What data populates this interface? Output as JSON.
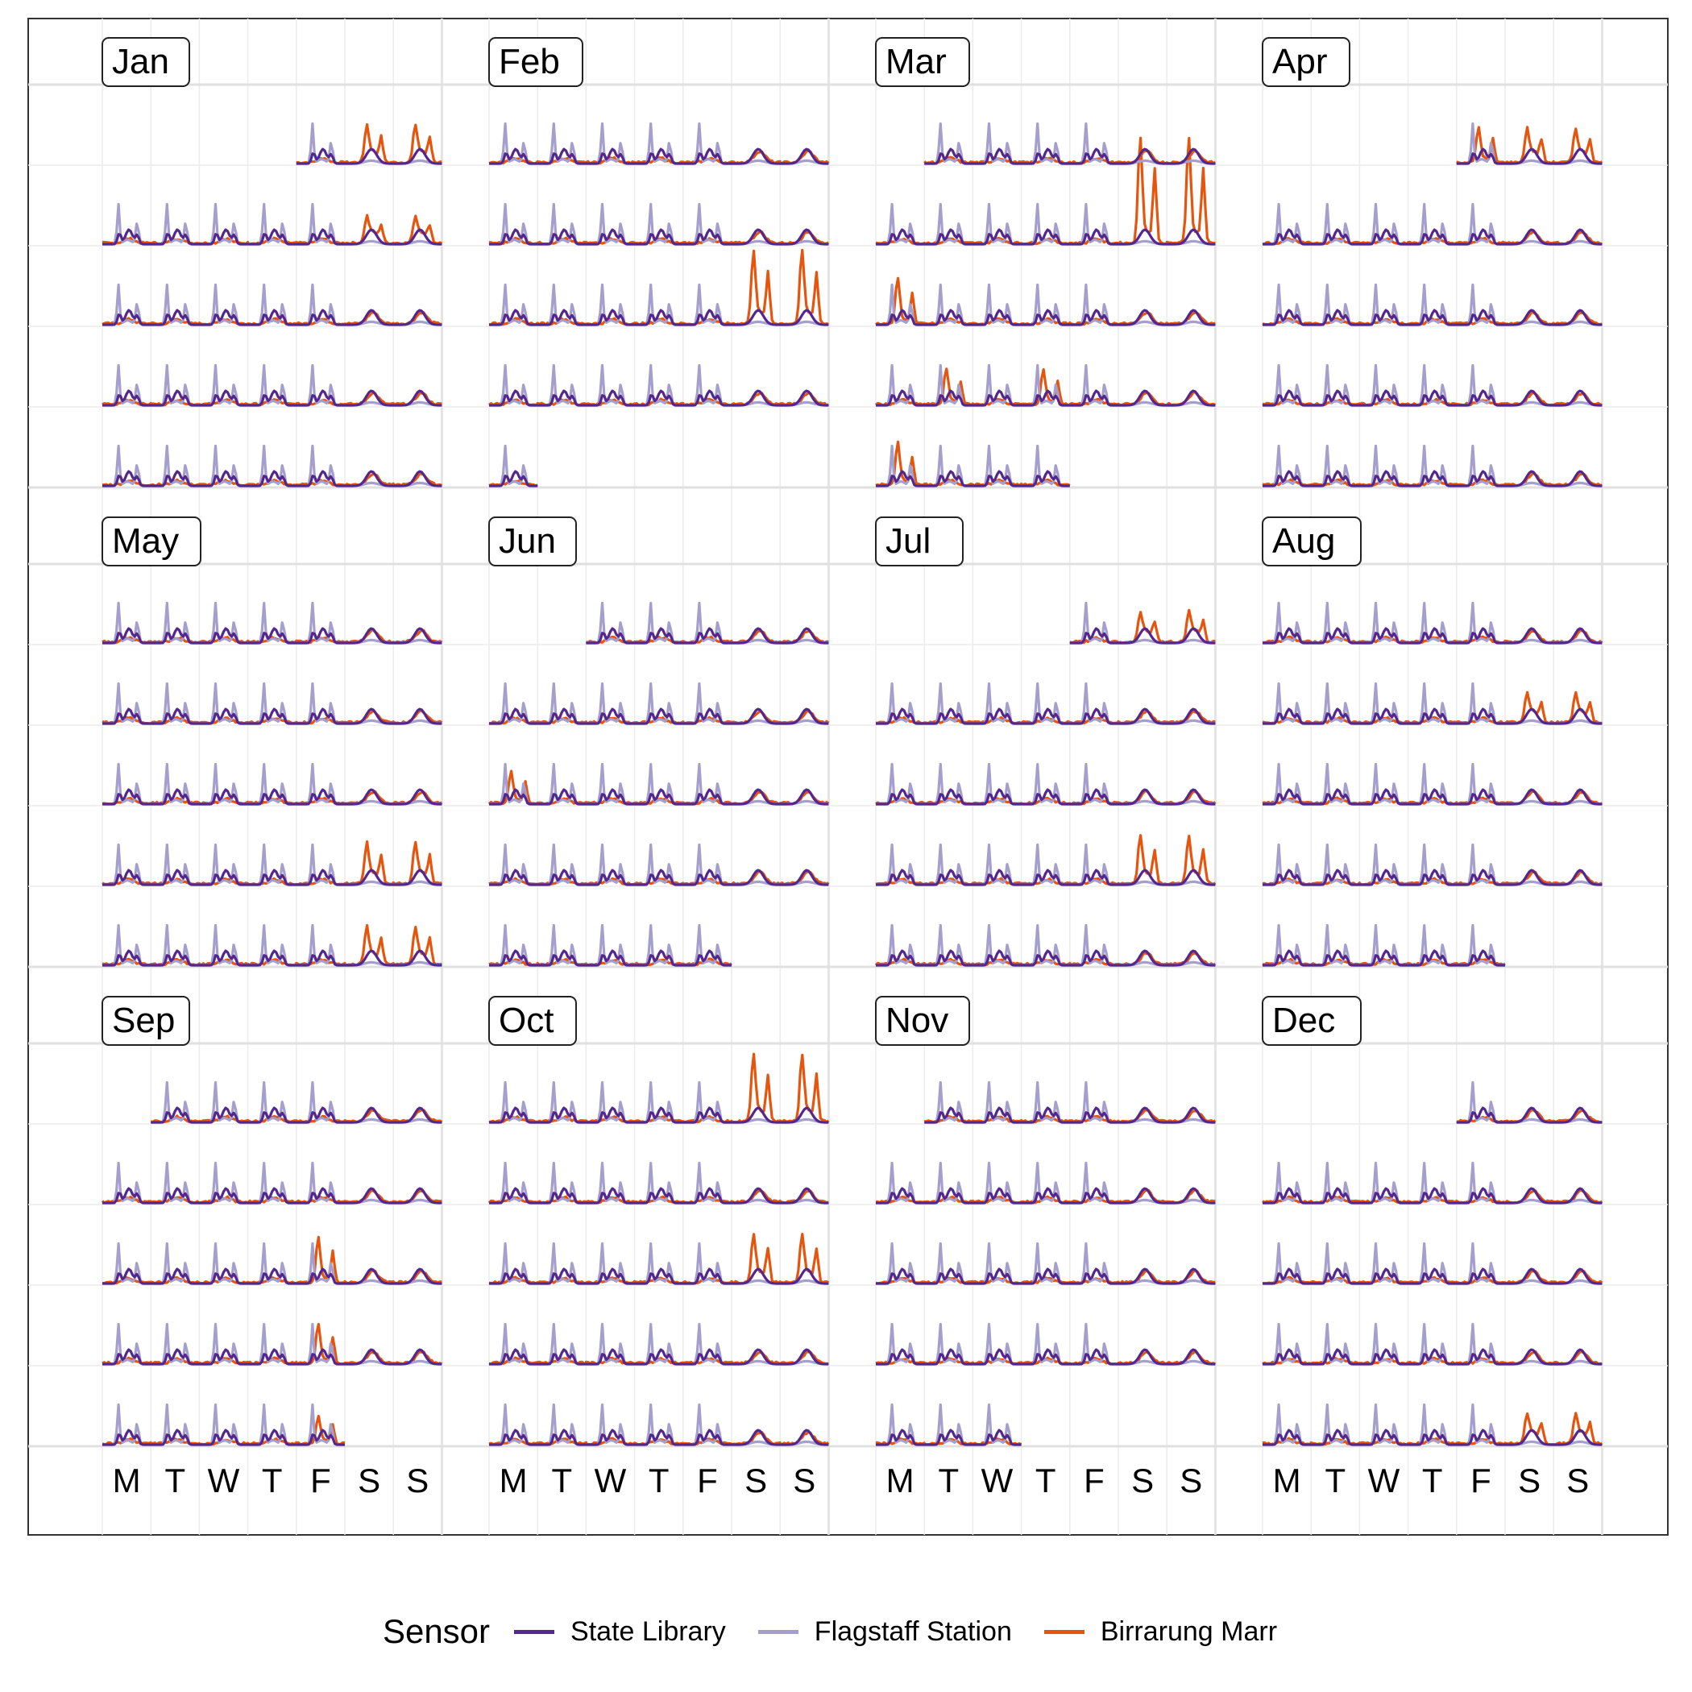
{
  "chart_data": {
    "type": "line",
    "subtype": "calendar",
    "title": "",
    "xlabel": "",
    "ylabel": "",
    "layout": "4 columns x 3 rows of months, each month a 7-day by 5-week calendar grid",
    "months": [
      "Jan",
      "Feb",
      "Mar",
      "Apr",
      "May",
      "Jun",
      "Jul",
      "Aug",
      "Sep",
      "Oct",
      "Nov",
      "Dec"
    ],
    "weekdays": [
      "M",
      "T",
      "W",
      "T",
      "F",
      "S",
      "S"
    ],
    "legend_title": "Sensor",
    "legend_position": "bottom",
    "grid": true,
    "series": [
      {
        "name": "State Library",
        "color": "#54278f",
        "pattern": "double-peak weekday commute, broad rounded weekend hump"
      },
      {
        "name": "Flagstaff Station",
        "color": "#a59fcd",
        "pattern": "tall morning spike plus evening spike on weekdays, flat weekends"
      },
      {
        "name": "Birrarung Marr",
        "color": "#e6550d",
        "pattern": "low flat baseline, occasional large event spikes (mostly weekends)"
      }
    ],
    "day_cells": [
      {
        "month": "Jan",
        "first_weekday": "F",
        "last_weekday": "S",
        "spikes": [
          {
            "week": 0,
            "weekday": "S",
            "level": 0.45
          },
          {
            "week": 1,
            "weekday": "S",
            "level": 0.3
          }
        ]
      },
      {
        "month": "Feb",
        "first_weekday": "M",
        "last_weekday": "M",
        "spikes": [
          {
            "week": 2,
            "weekday": "S",
            "level": 0.95
          }
        ]
      },
      {
        "month": "Mar",
        "first_weekday": "T",
        "last_weekday": "T",
        "spikes": [
          {
            "week": 1,
            "weekday": "S",
            "level": 0.65
          },
          {
            "week": 1,
            "weekday": "S",
            "level": 0.75
          },
          {
            "week": 2,
            "weekday": "M",
            "level": 0.6
          },
          {
            "week": 3,
            "weekday": "T",
            "level": 0.45
          },
          {
            "week": 4,
            "weekday": "M",
            "level": 0.55
          }
        ]
      },
      {
        "month": "Apr",
        "first_weekday": "F",
        "last_weekday": "S",
        "spikes": [
          {
            "week": 0,
            "weekday": "F",
            "level": 0.45
          },
          {
            "week": 0,
            "weekday": "S",
            "level": 0.4
          }
        ]
      },
      {
        "month": "May",
        "first_weekday": "M",
        "last_weekday": "S",
        "spikes": [
          {
            "week": 3,
            "weekday": "S",
            "level": 0.5
          },
          {
            "week": 4,
            "weekday": "S",
            "level": 0.45
          }
        ]
      },
      {
        "month": "Jun",
        "first_weekday": "W",
        "last_weekday": "F",
        "spikes": [
          {
            "week": 2,
            "weekday": "M",
            "level": 0.4
          }
        ]
      },
      {
        "month": "Jul",
        "first_weekday": "F",
        "last_weekday": "S",
        "spikes": [
          {
            "week": 3,
            "weekday": "S",
            "level": 0.6
          },
          {
            "week": 0,
            "weekday": "S",
            "level": 0.35
          }
        ]
      },
      {
        "month": "Aug",
        "first_weekday": "M",
        "last_weekday": "F",
        "spikes": [
          {
            "week": 1,
            "weekday": "S",
            "level": 0.35
          }
        ]
      },
      {
        "month": "Sep",
        "first_weekday": "T",
        "last_weekday": "F",
        "spikes": [
          {
            "week": 2,
            "weekday": "F",
            "level": 0.6
          },
          {
            "week": 3,
            "weekday": "F",
            "level": 0.5
          },
          {
            "week": 4,
            "weekday": "F",
            "level": 0.35
          }
        ]
      },
      {
        "month": "Oct",
        "first_weekday": "M",
        "last_weekday": "S",
        "spikes": [
          {
            "week": 0,
            "weekday": "S",
            "level": 0.85
          },
          {
            "week": 2,
            "weekday": "S",
            "level": 0.6
          }
        ]
      },
      {
        "month": "Nov",
        "first_weekday": "T",
        "last_weekday": "W",
        "spikes": []
      },
      {
        "month": "Dec",
        "first_weekday": "F",
        "last_weekday": "S",
        "spikes": [
          {
            "week": 4,
            "weekday": "S",
            "level": 0.35
          }
        ]
      }
    ]
  }
}
